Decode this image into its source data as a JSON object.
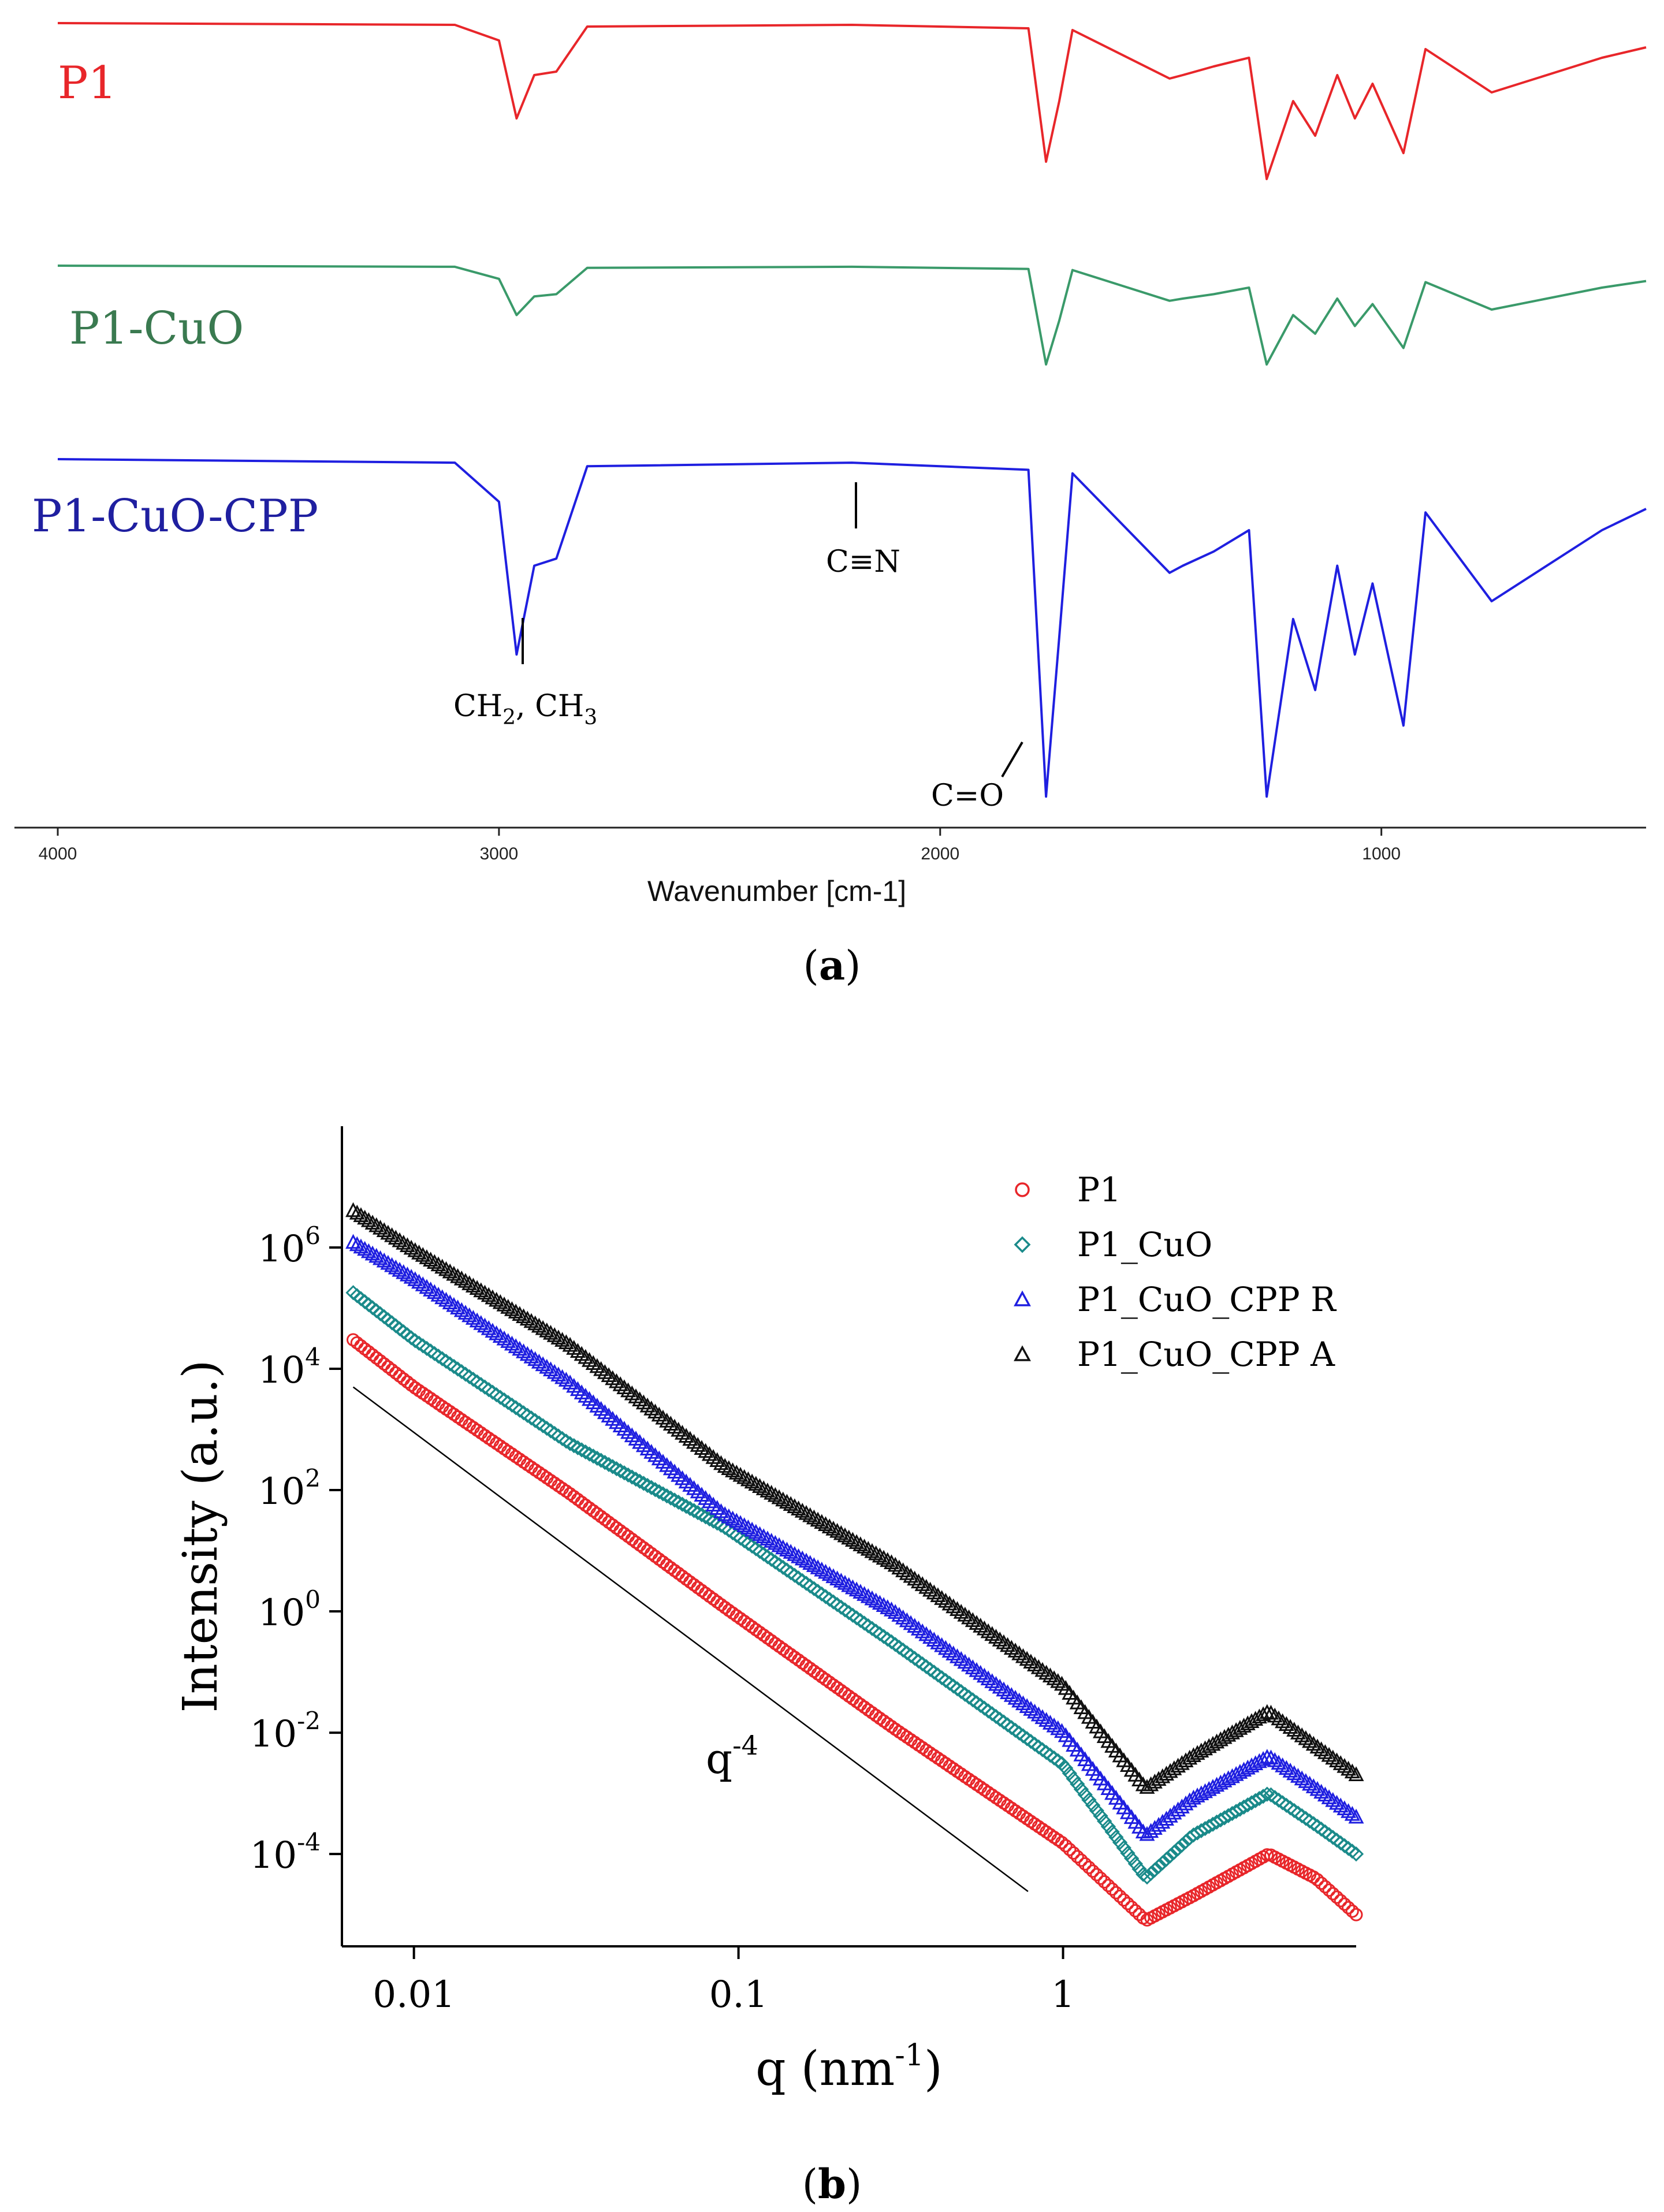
{
  "chart_data": [
    {
      "type": "line",
      "panel_label": "(a)",
      "panel_letter": "a",
      "xlabel": "Wavenumber [cm-1]",
      "xlim": [
        4000,
        400
      ],
      "x_reversed": true,
      "x_ticks": [
        4000,
        3000,
        2000,
        1000
      ],
      "y_axis": "transmittance (offset traces, unlabeled)",
      "series": [
        {
          "name": "P1",
          "color": "#e8262a",
          "points": [
            [
              4000,
              1.0
            ],
            [
              3100,
              0.99
            ],
            [
              3000,
              0.9
            ],
            [
              2960,
              0.45
            ],
            [
              2920,
              0.7
            ],
            [
              2870,
              0.72
            ],
            [
              2800,
              0.98
            ],
            [
              2200,
              0.99
            ],
            [
              1800,
              0.97
            ],
            [
              1760,
              0.2
            ],
            [
              1730,
              0.55
            ],
            [
              1700,
              0.96
            ],
            [
              1480,
              0.68
            ],
            [
              1450,
              0.7
            ],
            [
              1380,
              0.75
            ],
            [
              1300,
              0.8
            ],
            [
              1260,
              0.1
            ],
            [
              1200,
              0.55
            ],
            [
              1150,
              0.35
            ],
            [
              1100,
              0.7
            ],
            [
              1060,
              0.45
            ],
            [
              1020,
              0.65
            ],
            [
              950,
              0.25
            ],
            [
              900,
              0.85
            ],
            [
              750,
              0.6
            ],
            [
              500,
              0.8
            ],
            [
              400,
              0.86
            ]
          ]
        },
        {
          "name": "P1-CuO",
          "color": "#3a9a6a",
          "points": [
            [
              4000,
              1.0
            ],
            [
              3100,
              0.99
            ],
            [
              3000,
              0.88
            ],
            [
              2960,
              0.55
            ],
            [
              2920,
              0.72
            ],
            [
              2870,
              0.74
            ],
            [
              2800,
              0.98
            ],
            [
              2200,
              0.99
            ],
            [
              1800,
              0.97
            ],
            [
              1760,
              0.1
            ],
            [
              1730,
              0.5
            ],
            [
              1700,
              0.96
            ],
            [
              1480,
              0.68
            ],
            [
              1450,
              0.7
            ],
            [
              1380,
              0.74
            ],
            [
              1300,
              0.8
            ],
            [
              1260,
              0.1
            ],
            [
              1200,
              0.55
            ],
            [
              1150,
              0.38
            ],
            [
              1100,
              0.7
            ],
            [
              1060,
              0.45
            ],
            [
              1020,
              0.65
            ],
            [
              950,
              0.25
            ],
            [
              900,
              0.85
            ],
            [
              750,
              0.6
            ],
            [
              500,
              0.8
            ],
            [
              400,
              0.86
            ]
          ]
        },
        {
          "name": "P1-CuO-CPP",
          "color": "#1f1fe0",
          "points": [
            [
              4000,
              1.0
            ],
            [
              3100,
              0.99
            ],
            [
              3000,
              0.88
            ],
            [
              2960,
              0.45
            ],
            [
              2920,
              0.7
            ],
            [
              2870,
              0.72
            ],
            [
              2800,
              0.98
            ],
            [
              2200,
              0.99
            ],
            [
              1800,
              0.97
            ],
            [
              1760,
              0.05
            ],
            [
              1730,
              0.5
            ],
            [
              1700,
              0.96
            ],
            [
              1480,
              0.68
            ],
            [
              1450,
              0.7
            ],
            [
              1380,
              0.74
            ],
            [
              1300,
              0.8
            ],
            [
              1260,
              0.05
            ],
            [
              1200,
              0.55
            ],
            [
              1150,
              0.35
            ],
            [
              1100,
              0.7
            ],
            [
              1060,
              0.45
            ],
            [
              1020,
              0.65
            ],
            [
              950,
              0.25
            ],
            [
              900,
              0.85
            ],
            [
              750,
              0.6
            ],
            [
              500,
              0.8
            ],
            [
              400,
              0.86
            ]
          ]
        }
      ],
      "annotations": {
        "ch": {
          "parts": [
            "CH",
            "2",
            ", CH",
            "3"
          ],
          "wavenumber": 2950
        },
        "cn": {
          "text": "C≡N",
          "wavenumber": 2170
        },
        "co": {
          "text": "C=O",
          "wavenumber": 1760
        }
      }
    },
    {
      "type": "scatter",
      "panel_label": "(b)",
      "panel_letter": "b",
      "xlabel": "q (nm-1)",
      "xlabel_parts": [
        "q (nm",
        "-1",
        ")"
      ],
      "ylabel": "Intensity (a.u.)",
      "x_scale": "log",
      "y_scale": "log",
      "xlim": [
        0.006,
        8
      ],
      "ylim": [
        3e-06,
        100000000
      ],
      "x_ticks": [
        {
          "value": 0.01,
          "label": "0.01"
        },
        {
          "value": 0.1,
          "label": "0.1"
        },
        {
          "value": 1,
          "label": "1"
        }
      ],
      "y_ticks": [
        {
          "value": 0.0001,
          "base": "10",
          "exp": "-4"
        },
        {
          "value": 0.01,
          "base": "10",
          "exp": "-2"
        },
        {
          "value": 1,
          "base": "10",
          "exp": "0"
        },
        {
          "value": 100,
          "base": "10",
          "exp": "2"
        },
        {
          "value": 10000,
          "base": "10",
          "exp": "4"
        },
        {
          "value": 1000000,
          "base": "10",
          "exp": "6"
        }
      ],
      "series": [
        {
          "name": "P1",
          "color": "#e8262a",
          "marker": "circle",
          "points": [
            [
              0.0065,
              30000
            ],
            [
              0.01,
              5000
            ],
            [
              0.03,
              90
            ],
            [
              0.09,
              1.2
            ],
            [
              0.3,
              0.012
            ],
            [
              1,
              0.00015
            ],
            [
              1.8,
              8e-06
            ],
            [
              2.5,
              2e-05
            ],
            [
              4.3,
              0.0001
            ],
            [
              6,
              4e-05
            ],
            [
              8,
              1e-05
            ]
          ]
        },
        {
          "name": "P1_CuO",
          "color": "#1a8a8a",
          "marker": "diamond",
          "points": [
            [
              0.0065,
              180000
            ],
            [
              0.01,
              30000
            ],
            [
              0.03,
              600
            ],
            [
              0.09,
              25
            ],
            [
              0.3,
              0.3
            ],
            [
              1,
              0.003
            ],
            [
              1.8,
              4e-05
            ],
            [
              2.5,
              0.0002
            ],
            [
              4.3,
              0.001
            ],
            [
              6,
              0.0003
            ],
            [
              8,
              0.0001
            ]
          ]
        },
        {
          "name": "P1_CuO_CPP R",
          "color": "#1f1fe0",
          "marker": "triangle",
          "points": [
            [
              0.0065,
              1200000
            ],
            [
              0.01,
              300000
            ],
            [
              0.03,
              6000
            ],
            [
              0.09,
              40
            ],
            [
              0.3,
              1
            ],
            [
              1,
              0.01
            ],
            [
              1.8,
              0.0002
            ],
            [
              2.5,
              0.0008
            ],
            [
              4.3,
              0.004
            ],
            [
              6,
              0.0012
            ],
            [
              8,
              0.0004
            ]
          ]
        },
        {
          "name": "P1_CuO_CPP A",
          "color": "#111111",
          "marker": "triangle",
          "points": [
            [
              0.0065,
              4000000
            ],
            [
              0.01,
              900000
            ],
            [
              0.03,
              25000
            ],
            [
              0.09,
              250
            ],
            [
              0.3,
              6
            ],
            [
              1,
              0.06
            ],
            [
              1.8,
              0.0012
            ],
            [
              2.5,
              0.004
            ],
            [
              4.3,
              0.022
            ],
            [
              6,
              0.006
            ],
            [
              8,
              0.002
            ]
          ]
        }
      ],
      "reference_line": {
        "label": "q",
        "label_exp": "-4",
        "q_start": 0.0065,
        "I_start": 5000,
        "q_end": 0.78,
        "slope": -4
      }
    }
  ]
}
